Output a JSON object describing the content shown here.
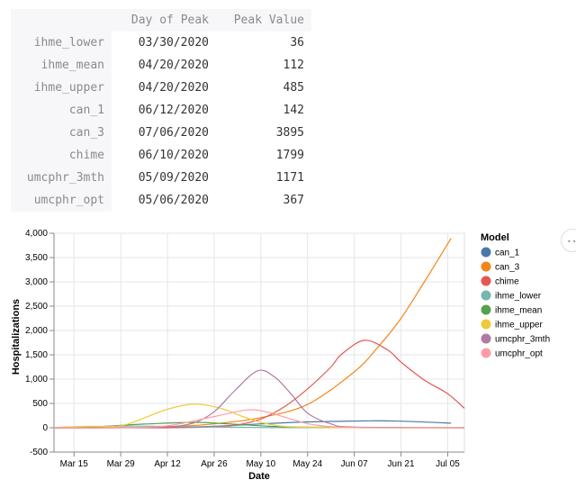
{
  "table": {
    "headers": [
      "",
      "Day of Peak",
      "Peak Value"
    ],
    "rows": [
      {
        "model": "ihme_lower",
        "day": "03/30/2020",
        "value": "36"
      },
      {
        "model": "ihme_mean",
        "day": "04/20/2020",
        "value": "112"
      },
      {
        "model": "ihme_upper",
        "day": "04/20/2020",
        "value": "485"
      },
      {
        "model": "can_1",
        "day": "06/12/2020",
        "value": "142"
      },
      {
        "model": "can_3",
        "day": "07/06/2020",
        "value": "3895"
      },
      {
        "model": "chime",
        "day": "06/10/2020",
        "value": "1799"
      },
      {
        "model": "umcphr_3mth",
        "day": "05/09/2020",
        "value": "1171"
      },
      {
        "model": "umcphr_opt",
        "day": "05/06/2020",
        "value": "367"
      }
    ]
  },
  "chart_data": {
    "type": "line",
    "xlabel": "Date",
    "ylabel": "Hospitalizations",
    "x_domain": [
      "2020-03-09",
      "2020-07-10"
    ],
    "ylim": [
      -500,
      4000
    ],
    "y_ticks": [
      -500,
      0,
      500,
      1000,
      1500,
      2000,
      2500,
      3000,
      3500,
      4000
    ],
    "y_tick_labels": [
      "-500",
      "0",
      "500",
      "1,000",
      "1,500",
      "2,000",
      "2,500",
      "3,000",
      "3,500",
      "4,000"
    ],
    "x_ticks": [
      "2020-03-15",
      "2020-03-29",
      "2020-04-12",
      "2020-04-26",
      "2020-05-10",
      "2020-05-24",
      "2020-06-07",
      "2020-06-21",
      "2020-07-05"
    ],
    "x_tick_labels": [
      "Mar 15",
      "Mar 29",
      "Apr 12",
      "Apr 26",
      "May 10",
      "May 24",
      "Jun 07",
      "Jun 21",
      "Jul 05"
    ],
    "grid": true,
    "legend_title": "Model",
    "legend_position": "right",
    "series": [
      {
        "name": "can_1",
        "color": "#4c78a8",
        "points": [
          [
            "2020-03-09",
            0
          ],
          [
            "2020-03-29",
            2
          ],
          [
            "2020-04-12",
            10
          ],
          [
            "2020-04-26",
            30
          ],
          [
            "2020-05-10",
            80
          ],
          [
            "2020-05-24",
            120
          ],
          [
            "2020-06-12",
            142
          ],
          [
            "2020-06-21",
            135
          ],
          [
            "2020-07-06",
            95
          ]
        ]
      },
      {
        "name": "can_3",
        "color": "#f58518",
        "points": [
          [
            "2020-03-09",
            0
          ],
          [
            "2020-03-29",
            2
          ],
          [
            "2020-04-12",
            20
          ],
          [
            "2020-04-26",
            80
          ],
          [
            "2020-05-10",
            210
          ],
          [
            "2020-05-24",
            480
          ],
          [
            "2020-06-07",
            1150
          ],
          [
            "2020-06-14",
            1650
          ],
          [
            "2020-06-21",
            2250
          ],
          [
            "2020-06-28",
            3000
          ],
          [
            "2020-07-06",
            3895
          ]
        ]
      },
      {
        "name": "chime",
        "color": "#e45756",
        "points": [
          [
            "2020-03-09",
            0
          ],
          [
            "2020-03-29",
            0
          ],
          [
            "2020-04-12",
            0
          ],
          [
            "2020-04-26",
            20
          ],
          [
            "2020-05-03",
            60
          ],
          [
            "2020-05-10",
            180
          ],
          [
            "2020-05-17",
            430
          ],
          [
            "2020-05-24",
            800
          ],
          [
            "2020-05-31",
            1250
          ],
          [
            "2020-06-03",
            1500
          ],
          [
            "2020-06-10",
            1799
          ],
          [
            "2020-06-17",
            1600
          ],
          [
            "2020-06-21",
            1350
          ],
          [
            "2020-06-28",
            980
          ],
          [
            "2020-07-05",
            700
          ],
          [
            "2020-07-10",
            400
          ]
        ]
      },
      {
        "name": "ihme_lower",
        "color": "#72b7b2",
        "points": [
          [
            "2020-03-09",
            5
          ],
          [
            "2020-03-22",
            20
          ],
          [
            "2020-03-30",
            36
          ],
          [
            "2020-04-12",
            28
          ],
          [
            "2020-04-26",
            15
          ],
          [
            "2020-05-10",
            5
          ],
          [
            "2020-05-24",
            2
          ],
          [
            "2020-07-10",
            0
          ]
        ]
      },
      {
        "name": "ihme_mean",
        "color": "#54a24b",
        "points": [
          [
            "2020-03-09",
            5
          ],
          [
            "2020-03-22",
            25
          ],
          [
            "2020-04-05",
            75
          ],
          [
            "2020-04-20",
            112
          ],
          [
            "2020-04-30",
            80
          ],
          [
            "2020-05-10",
            40
          ],
          [
            "2020-05-24",
            12
          ],
          [
            "2020-07-10",
            0
          ]
        ]
      },
      {
        "name": "ihme_upper",
        "color": "#eeca3b",
        "points": [
          [
            "2020-03-09",
            5
          ],
          [
            "2020-03-20",
            30
          ],
          [
            "2020-03-29",
            40
          ],
          [
            "2020-04-05",
            200
          ],
          [
            "2020-04-12",
            380
          ],
          [
            "2020-04-20",
            485
          ],
          [
            "2020-04-28",
            400
          ],
          [
            "2020-05-05",
            220
          ],
          [
            "2020-05-12",
            80
          ],
          [
            "2020-05-24",
            10
          ],
          [
            "2020-07-10",
            0
          ]
        ]
      },
      {
        "name": "umcphr_3mth",
        "color": "#b279a2",
        "points": [
          [
            "2020-03-09",
            0
          ],
          [
            "2020-03-29",
            2
          ],
          [
            "2020-04-12",
            20
          ],
          [
            "2020-04-20",
            100
          ],
          [
            "2020-04-26",
            330
          ],
          [
            "2020-05-02",
            750
          ],
          [
            "2020-05-09",
            1171
          ],
          [
            "2020-05-14",
            1050
          ],
          [
            "2020-05-19",
            700
          ],
          [
            "2020-05-24",
            300
          ],
          [
            "2020-05-31",
            80
          ],
          [
            "2020-06-07",
            15
          ],
          [
            "2020-07-10",
            0
          ]
        ]
      },
      {
        "name": "umcphr_opt",
        "color": "#ff9da6",
        "points": [
          [
            "2020-03-09",
            0
          ],
          [
            "2020-03-29",
            2
          ],
          [
            "2020-04-12",
            40
          ],
          [
            "2020-04-26",
            230
          ],
          [
            "2020-05-06",
            367
          ],
          [
            "2020-05-12",
            320
          ],
          [
            "2020-05-19",
            180
          ],
          [
            "2020-05-26",
            60
          ],
          [
            "2020-06-07",
            5
          ],
          [
            "2020-07-10",
            0
          ]
        ]
      }
    ]
  },
  "toolbar": {
    "more_label": "•••"
  }
}
